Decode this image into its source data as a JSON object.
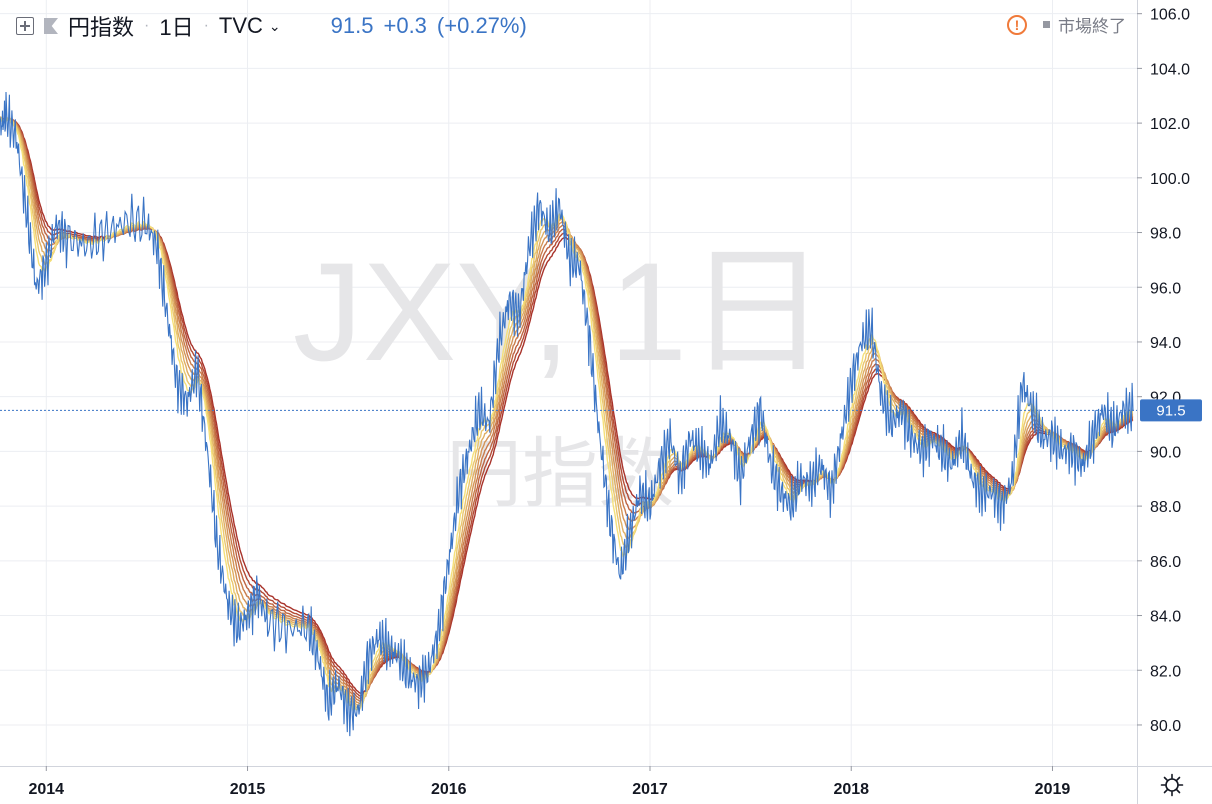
{
  "header": {
    "symbol_name": "円指数",
    "interval": "1日",
    "exchange": "TVC",
    "last_price": "91.5",
    "change": "+0.3",
    "change_pct": "(+0.27%)",
    "market_status": "市場終了"
  },
  "watermark": {
    "symbol": "JXY, 1日",
    "name": "円指数"
  },
  "colors": {
    "price_line": "#3a74c5",
    "ribbon_fast": "#f5e07a",
    "ribbon_slow": "#a8322a",
    "grid": "#eceef2",
    "axis_text": "#131722",
    "price_label_bg": "#3a74c5"
  },
  "icons": [
    "add-box-icon",
    "flag-icon",
    "chevron-down-icon",
    "warning-icon",
    "settings-gear-icon"
  ],
  "chart_data": {
    "type": "line",
    "title": "円指数",
    "x_ticks": [
      "2014",
      "2015",
      "2016",
      "2017",
      "2018",
      "2019"
    ],
    "y_ticks": [
      "80.0",
      "82.0",
      "84.0",
      "86.0",
      "88.0",
      "90.0",
      "92.0",
      "94.0",
      "96.0",
      "98.0",
      "100.0",
      "102.0",
      "104.0",
      "106.0"
    ],
    "ylim": [
      78.5,
      106.5
    ],
    "xlim": [
      2013.77,
      2019.42
    ],
    "current_price_label": "91.5",
    "current_price": 91.5,
    "ribbon_count": 8,
    "series": [
      {
        "name": "円指数",
        "x": [
          2013.77,
          2013.8,
          2013.85,
          2013.9,
          2013.95,
          2014.0,
          2014.05,
          2014.1,
          2014.2,
          2014.3,
          2014.4,
          2014.5,
          2014.55,
          2014.6,
          2014.65,
          2014.7,
          2014.75,
          2014.8,
          2014.85,
          2014.9,
          2014.95,
          2015.0,
          2015.05,
          2015.1,
          2015.2,
          2015.3,
          2015.35,
          2015.4,
          2015.45,
          2015.5,
          2015.55,
          2015.6,
          2015.65,
          2015.7,
          2015.75,
          2015.8,
          2015.85,
          2015.9,
          2015.95,
          2016.0,
          2016.05,
          2016.1,
          2016.15,
          2016.2,
          2016.25,
          2016.3,
          2016.35,
          2016.4,
          2016.45,
          2016.5,
          2016.55,
          2016.6,
          2016.65,
          2016.7,
          2016.75,
          2016.8,
          2016.85,
          2016.9,
          2016.95,
          2017.0,
          2017.05,
          2017.1,
          2017.15,
          2017.2,
          2017.25,
          2017.3,
          2017.35,
          2017.4,
          2017.45,
          2017.5,
          2017.55,
          2017.6,
          2017.65,
          2017.7,
          2017.75,
          2017.8,
          2017.85,
          2017.9,
          2017.95,
          2018.0,
          2018.05,
          2018.1,
          2018.15,
          2018.2,
          2018.25,
          2018.3,
          2018.35,
          2018.4,
          2018.45,
          2018.5,
          2018.55,
          2018.6,
          2018.65,
          2018.7,
          2018.75,
          2018.8,
          2018.85,
          2018.9,
          2018.95,
          2019.0,
          2019.05,
          2019.1,
          2019.15,
          2019.2,
          2019.25,
          2019.3,
          2019.35,
          2019.4
        ],
        "values": [
          101.8,
          102.3,
          101.5,
          98.8,
          96.0,
          96.8,
          98.3,
          97.8,
          97.5,
          98.0,
          98.4,
          98.3,
          97.5,
          95.0,
          92.5,
          91.8,
          93.0,
          90.0,
          86.5,
          84.5,
          83.5,
          84.0,
          84.8,
          83.8,
          83.5,
          83.6,
          82.5,
          80.8,
          81.5,
          80.5,
          80.5,
          82.5,
          83.2,
          82.8,
          82.5,
          81.8,
          81.5,
          82.0,
          83.5,
          86.0,
          88.5,
          90.0,
          91.5,
          91.0,
          94.0,
          95.5,
          95.0,
          97.5,
          99.0,
          98.0,
          99.0,
          97.0,
          96.8,
          94.0,
          90.5,
          87.5,
          85.5,
          87.0,
          88.5,
          88.0,
          89.5,
          90.5,
          89.0,
          90.5,
          90.0,
          89.5,
          91.0,
          90.5,
          89.0,
          90.5,
          91.5,
          89.5,
          88.5,
          88.0,
          89.0,
          88.8,
          89.5,
          88.5,
          90.5,
          92.5,
          94.0,
          94.5,
          92.0,
          91.0,
          91.5,
          90.5,
          90.0,
          90.5,
          90.0,
          89.5,
          90.5,
          89.0,
          88.5,
          88.5,
          88.0,
          89.0,
          92.5,
          91.5,
          90.5,
          90.5,
          90.0,
          90.0,
          89.5,
          90.5,
          91.5,
          90.8,
          91.5,
          91.5
        ]
      }
    ]
  }
}
